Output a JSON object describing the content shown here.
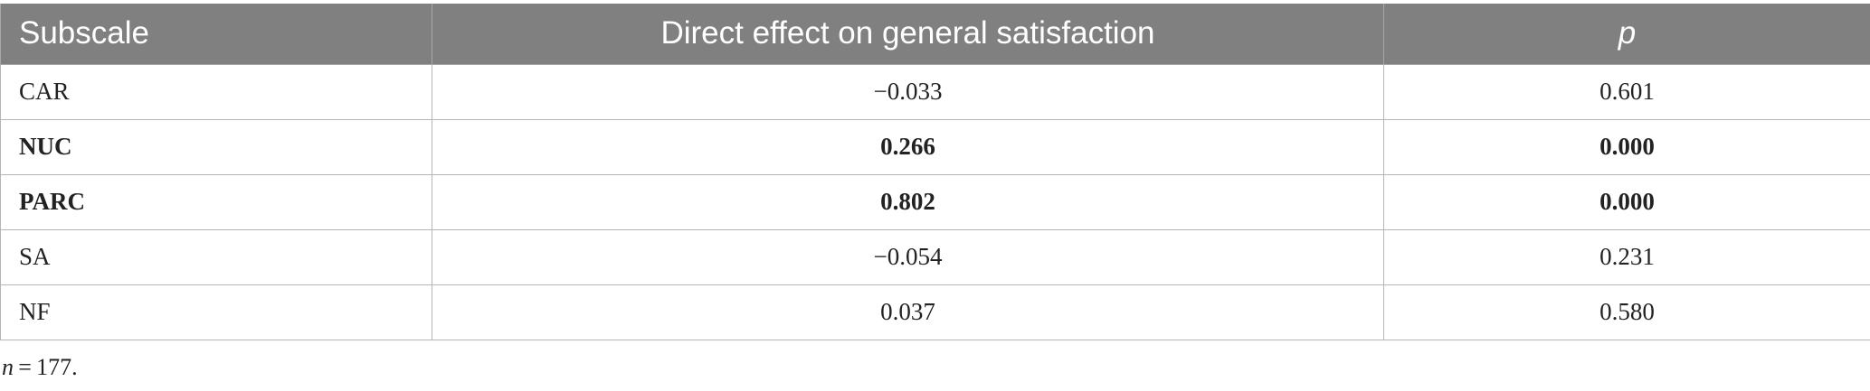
{
  "table": {
    "headers": [
      "Subscale",
      "Direct effect on general satisfaction",
      "p"
    ],
    "rows": [
      {
        "subscale": "CAR",
        "effect": "−0.033",
        "p": "0.601",
        "bold": false
      },
      {
        "subscale": "NUC",
        "effect": "0.266",
        "p": "0.000",
        "bold": true
      },
      {
        "subscale": "PARC",
        "effect": "0.802",
        "p": "0.000",
        "bold": true
      },
      {
        "subscale": "SA",
        "effect": "−0.054",
        "p": "0.231",
        "bold": false
      },
      {
        "subscale": "NF",
        "effect": "0.037",
        "p": "0.580",
        "bold": false
      }
    ]
  },
  "footnote": {
    "variable": "n",
    "text": " = 177."
  }
}
